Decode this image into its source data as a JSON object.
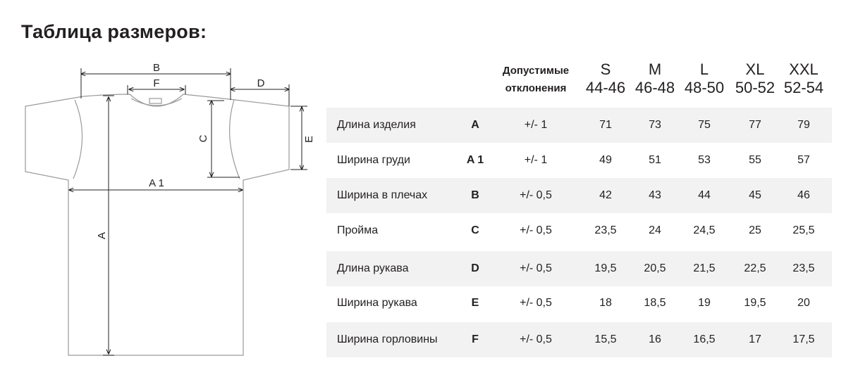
{
  "title": "Таблица размеров:",
  "diagram": {
    "labels": {
      "b": "B",
      "f": "F",
      "d": "D",
      "c": "C",
      "e": "E",
      "a1": "A 1",
      "a": "A"
    }
  },
  "table": {
    "tolerance_header": [
      "Допустимые",
      "отклонения"
    ],
    "sizes": [
      {
        "letter": "S",
        "range": "44-46"
      },
      {
        "letter": "M",
        "range": "46-48"
      },
      {
        "letter": "L",
        "range": "48-50"
      },
      {
        "letter": "XL",
        "range": "50-52"
      },
      {
        "letter": "XXL",
        "range": "52-54"
      }
    ],
    "rows": [
      {
        "label": "Длина изделия",
        "code": "A",
        "tolerance": "+/- 1",
        "values": [
          "71",
          "73",
          "75",
          "77",
          "79"
        ]
      },
      {
        "label": "Ширина груди",
        "code": "A 1",
        "tolerance": "+/- 1",
        "values": [
          "49",
          "51",
          "53",
          "55",
          "57"
        ]
      },
      {
        "label": "Ширина в плечах",
        "code": "B",
        "tolerance": "+/- 0,5",
        "values": [
          "42",
          "43",
          "44",
          "45",
          "46"
        ]
      },
      {
        "label": "Пройма",
        "code": "C",
        "tolerance": "+/- 0,5",
        "values": [
          "23,5",
          "24",
          "24,5",
          "25",
          "25,5"
        ]
      },
      {
        "label": "Длина рукава",
        "code": "D",
        "tolerance": "+/- 0,5",
        "values": [
          "19,5",
          "20,5",
          "21,5",
          "22,5",
          "23,5"
        ]
      },
      {
        "label": "Ширина рукава",
        "code": "E",
        "tolerance": "+/- 0,5",
        "values": [
          "18",
          "18,5",
          "19",
          "19,5",
          "20"
        ]
      },
      {
        "label": "Ширина горловины",
        "code": "F",
        "tolerance": "+/- 0,5",
        "values": [
          "15,5",
          "16",
          "16,5",
          "17",
          "17,5"
        ]
      }
    ]
  },
  "colors": {
    "text": "#231f20",
    "row_shade": "#f2f2f2",
    "outline": "#9a9a9a"
  }
}
